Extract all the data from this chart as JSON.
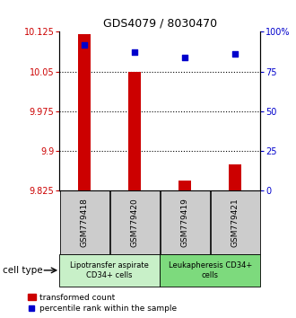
{
  "title": "GDS4079 / 8030470",
  "samples": [
    "GSM779418",
    "GSM779420",
    "GSM779419",
    "GSM779421"
  ],
  "transformed_counts": [
    10.12,
    10.05,
    9.845,
    9.875
  ],
  "percentile_ranks": [
    92,
    87,
    84,
    86
  ],
  "ylim_left": [
    9.825,
    10.125
  ],
  "ylim_right": [
    0,
    100
  ],
  "yticks_left": [
    9.825,
    9.9,
    9.975,
    10.05,
    10.125
  ],
  "yticks_right": [
    0,
    25,
    50,
    75,
    100
  ],
  "ytick_labels_left": [
    "9.825",
    "9.9",
    "9.975",
    "10.05",
    "10.125"
  ],
  "ytick_labels_right": [
    "0",
    "25",
    "50",
    "75",
    "100%"
  ],
  "groups": [
    {
      "label": "Lipotransfer aspirate\nCD34+ cells",
      "indices": [
        0,
        1
      ],
      "color": "#c8f0c8"
    },
    {
      "label": "Leukapheresis CD34+\ncells",
      "indices": [
        2,
        3
      ],
      "color": "#7dda7d"
    }
  ],
  "cell_type_label": "cell type",
  "bar_color": "#cc0000",
  "dot_color": "#0000cc",
  "bar_width": 0.25,
  "legend_bar_label": "transformed count",
  "legend_dot_label": "percentile rank within the sample",
  "tick_color_left": "#cc0000",
  "tick_color_right": "#0000cc",
  "gsm_box_color": "#cccccc",
  "background_color": "#ffffff"
}
